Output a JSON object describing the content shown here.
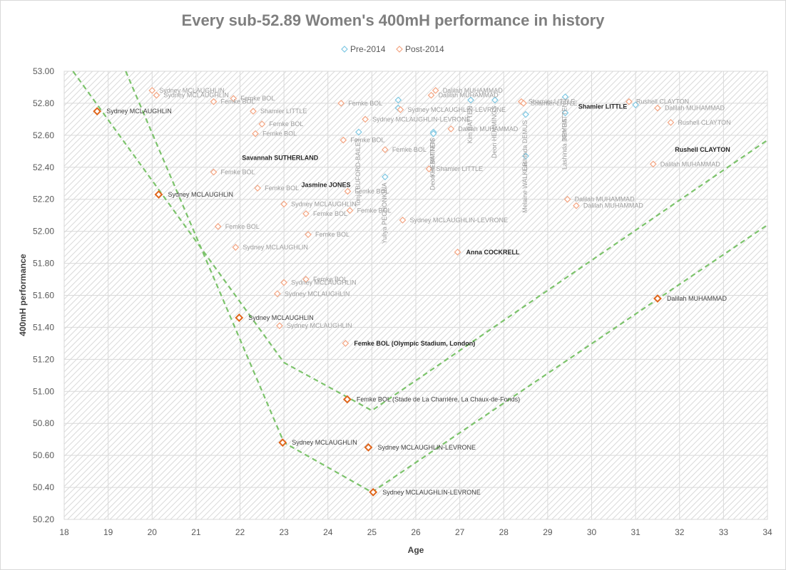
{
  "chart_data": {
    "type": "scatter",
    "title": "Every sub-52.89 Women's 400mH performance in history",
    "xlabel": "Age",
    "ylabel": "400mH performance",
    "xlim": [
      18,
      34
    ],
    "ylim": [
      50.2,
      53.0
    ],
    "x_ticks": [
      "18",
      "19",
      "20",
      "21",
      "22",
      "23",
      "24",
      "25",
      "26",
      "27",
      "28",
      "29",
      "30",
      "31",
      "32",
      "33",
      "34"
    ],
    "y_ticks": [
      "50.20",
      "50.40",
      "50.60",
      "50.80",
      "51.00",
      "51.20",
      "51.40",
      "51.60",
      "51.80",
      "52.00",
      "52.20",
      "52.40",
      "52.60",
      "52.80",
      "53.00"
    ],
    "legend": {
      "position": "top",
      "items": [
        "Pre-2014",
        "Post-2014"
      ]
    },
    "grid": true,
    "colors": {
      "pre": "#7ec8e3",
      "post": "#f4a582",
      "highlight": "#e0661c",
      "trend": "#7cc36b"
    },
    "series": [
      {
        "name": "Pre-2014",
        "points": [
          {
            "x": 25.6,
            "y": 52.82,
            "label": ""
          },
          {
            "x": 25.6,
            "y": 52.77,
            "label": ""
          },
          {
            "x": 24.7,
            "y": 52.62,
            "label": "Tonja BUFORD-BAILEY"
          },
          {
            "x": 25.3,
            "y": 52.34,
            "label": "Yuliya PECHONKINA"
          },
          {
            "x": 26.4,
            "y": 52.62,
            "label": "Deon HEMMINGS"
          },
          {
            "x": 26.4,
            "y": 52.61,
            "label": "Kim BATTEN"
          },
          {
            "x": 27.25,
            "y": 52.82,
            "label": "Kim BATTEN"
          },
          {
            "x": 27.8,
            "y": 52.82,
            "label": "Deon HEMMINGS"
          },
          {
            "x": 28.5,
            "y": 52.73,
            "label": "Lashinda DEMUS"
          },
          {
            "x": 28.5,
            "y": 52.47,
            "label": "Melaine WALKER"
          },
          {
            "x": 29.4,
            "y": 52.84,
            "label": "Kim BATTEN"
          },
          {
            "x": 29.4,
            "y": 52.74,
            "label": "Lashinda DEMUS"
          },
          {
            "x": 31.0,
            "y": 52.79,
            "label": ""
          }
        ]
      },
      {
        "name": "Post-2014",
        "points": [
          {
            "x": 20.0,
            "y": 52.88,
            "label": "Sydney MCLAUGHLIN"
          },
          {
            "x": 20.1,
            "y": 52.85,
            "label": "Sydney MCLAUGHLIN"
          },
          {
            "x": 21.4,
            "y": 52.81,
            "label": "Femke BOL"
          },
          {
            "x": 21.85,
            "y": 52.83,
            "label": "Femke BOL"
          },
          {
            "x": 22.3,
            "y": 52.75,
            "label": "Shamier LITTLE"
          },
          {
            "x": 22.5,
            "y": 52.67,
            "label": "Femke BOL"
          },
          {
            "x": 22.35,
            "y": 52.61,
            "label": "Femke BOL"
          },
          {
            "x": 21.4,
            "y": 52.37,
            "label": "Femke BOL"
          },
          {
            "x": 22.4,
            "y": 52.27,
            "label": "Femke BOL"
          },
          {
            "x": 23.0,
            "y": 52.17,
            "label": "Sydney MCLAUGHLIN"
          },
          {
            "x": 23.5,
            "y": 52.11,
            "label": "Femke BOL"
          },
          {
            "x": 21.5,
            "y": 52.03,
            "label": "Femke BOL"
          },
          {
            "x": 23.55,
            "y": 51.98,
            "label": "Femke BOL"
          },
          {
            "x": 21.9,
            "y": 51.9,
            "label": "Sydney MCLAUGHLIN"
          },
          {
            "x": 23.0,
            "y": 51.68,
            "label": "Sydney MCLAUGHLIN"
          },
          {
            "x": 23.5,
            "y": 51.7,
            "label": "Femke BOL"
          },
          {
            "x": 22.85,
            "y": 51.61,
            "label": "Sydney MCLAUGHLIN"
          },
          {
            "x": 22.9,
            "y": 51.41,
            "label": "Sydney MCLAUGHLIN"
          },
          {
            "x": 24.3,
            "y": 52.8,
            "label": "Femke BOL"
          },
          {
            "x": 24.35,
            "y": 52.57,
            "label": "Femke BOL"
          },
          {
            "x": 24.45,
            "y": 52.25,
            "label": "Femke BOL"
          },
          {
            "x": 24.5,
            "y": 52.13,
            "label": "Femke BOL"
          },
          {
            "x": 24.4,
            "y": 51.3,
            "label": ""
          },
          {
            "x": 24.85,
            "y": 52.7,
            "label": "Sydney MCLAUGHLIN-LEVRONE"
          },
          {
            "x": 25.3,
            "y": 52.51,
            "label": "Femke BOL"
          },
          {
            "x": 25.65,
            "y": 52.76,
            "label": "Sydney MCLAUGHLIN-LEVRONE"
          },
          {
            "x": 25.7,
            "y": 52.07,
            "label": "Sydney MCLAUGHLIN-LEVRONE"
          },
          {
            "x": 26.35,
            "y": 52.85,
            "label": "Dalilah MUHAMMAD"
          },
          {
            "x": 26.45,
            "y": 52.88,
            "label": "Dalilah MUHAMMAD"
          },
          {
            "x": 26.3,
            "y": 52.39,
            "label": "Shamier LITTLE"
          },
          {
            "x": 26.8,
            "y": 52.64,
            "label": "Dalilah MUHAMMAD"
          },
          {
            "x": 26.95,
            "y": 51.87,
            "label": ""
          },
          {
            "x": 28.4,
            "y": 52.81,
            "label": "Shamier LITTLE"
          },
          {
            "x": 28.45,
            "y": 52.8,
            "label": "Shamier LITTLE"
          },
          {
            "x": 29.45,
            "y": 52.2,
            "label": "Dalilah MUHAMMAD"
          },
          {
            "x": 29.65,
            "y": 52.16,
            "label": "Dalilah MUHAMMAD"
          },
          {
            "x": 30.85,
            "y": 52.81,
            "label": "Rushell CLAYTON"
          },
          {
            "x": 31.5,
            "y": 52.77,
            "label": "Dalilah MUHAMMAD"
          },
          {
            "x": 31.8,
            "y": 52.68,
            "label": "Rushell CLAYTON"
          },
          {
            "x": 31.4,
            "y": 52.42,
            "label": "Dalilah MUHAMMAD"
          }
        ]
      }
    ],
    "highlighted_points": [
      {
        "x": 18.75,
        "y": 52.75,
        "label": "Sydney MCLAUGHLIN"
      },
      {
        "x": 20.15,
        "y": 52.23,
        "label": "Sydney MCLAUGHLIN"
      },
      {
        "x": 21.98,
        "y": 51.46,
        "label": "Sydney MCLAUGHLIN"
      },
      {
        "x": 22.97,
        "y": 50.68,
        "label": "Sydney MCLAUGHLIN"
      },
      {
        "x": 24.44,
        "y": 50.95,
        "label": "Femke BOL (Stade de La Charrière, La Chaux-de-Fonds)"
      },
      {
        "x": 24.92,
        "y": 50.65,
        "label": "Sydney MCLAUGHLIN-LEVRONE"
      },
      {
        "x": 25.03,
        "y": 50.37,
        "label": "Sydney MCLAUGHLIN-LEVRONE"
      },
      {
        "x": 31.5,
        "y": 51.58,
        "label": "Dalilah MUHAMMAD"
      }
    ],
    "bold_labels": [
      {
        "x": 21.85,
        "y": 52.46,
        "label": "Savannah SUTHERLAND"
      },
      {
        "x": 23.2,
        "y": 52.29,
        "label": "Jasmine JONES"
      },
      {
        "x": 24.4,
        "y": 51.3,
        "label": "Femke BOL (Olympic Stadium, London)"
      },
      {
        "x": 26.95,
        "y": 51.87,
        "label": "Anna COCKRELL"
      },
      {
        "x": 29.5,
        "y": 52.78,
        "label": "Shamier LITTLE"
      },
      {
        "x": 31.7,
        "y": 52.51,
        "label": "Rushell CLAYTON"
      }
    ],
    "trend_lines": [
      {
        "points": [
          [
            18.2,
            53.0
          ],
          [
            23.0,
            51.18
          ],
          [
            25.0,
            50.88
          ],
          [
            34.0,
            52.57
          ]
        ]
      },
      {
        "points": [
          [
            19.4,
            53.0
          ],
          [
            23.0,
            50.68
          ],
          [
            25.0,
            50.37
          ],
          [
            34.0,
            52.04
          ]
        ]
      }
    ]
  }
}
